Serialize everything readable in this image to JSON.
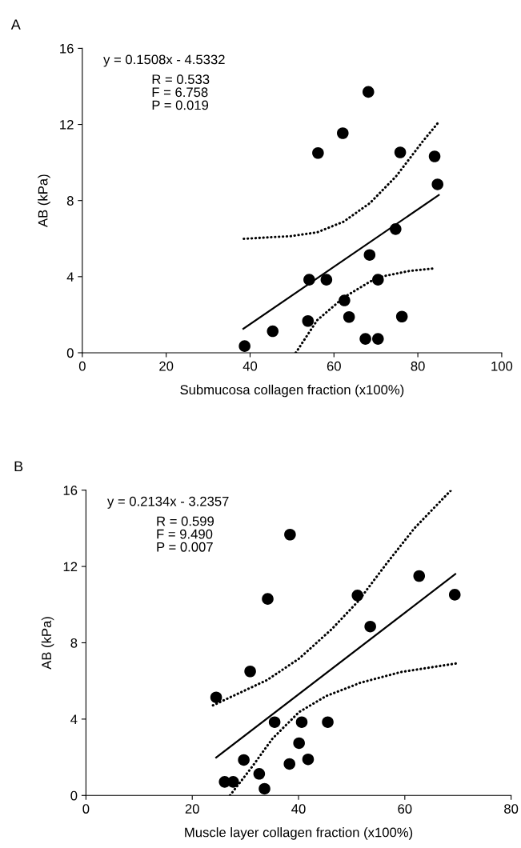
{
  "chart_data": [
    {
      "type": "scatter",
      "title": "A",
      "xlabel": "Submucosa collagen fraction (x100%)",
      "ylabel": "AB (kPa)",
      "xlim": [
        0,
        100
      ],
      "xticks": [
        0,
        20,
        40,
        60,
        80,
        100
      ],
      "ylim": [
        0,
        16
      ],
      "yticks": [
        0,
        4,
        8,
        12,
        16
      ],
      "grid": false,
      "legend": false,
      "annotations": [
        "y = 0.1508x - 4.5332",
        "R = 0.533",
        "F = 6.758",
        "P = 0.019"
      ],
      "series": [
        {
          "type": "scatter",
          "color": "#000000",
          "marker": "circle",
          "x": [
            38.7,
            45.4,
            53.8,
            54.1,
            56.2,
            58.2,
            62.1,
            62.5,
            63.6,
            67.5,
            68.2,
            68.5,
            70.5,
            70.5,
            74.7,
            75.8,
            76.2,
            84.0,
            84.7
          ],
          "values": [
            0.35,
            1.13,
            1.67,
            3.84,
            10.5,
            3.84,
            11.54,
            2.75,
            1.88,
            0.73,
            13.71,
            5.14,
            3.84,
            0.73,
            6.5,
            10.53,
            1.9,
            10.32,
            8.85
          ]
        },
        {
          "type": "line",
          "color": "#000000",
          "line_style": "solid",
          "x": [
            38.4,
            85.0
          ],
          "values": [
            1.26,
            8.29
          ]
        },
        {
          "type": "line",
          "color": "#000000",
          "line_style": "dotted",
          "x": [
            38.5,
            49.7,
            56.0,
            62.3,
            68.6,
            74.8,
            81.1,
            84.9
          ],
          "values": [
            5.99,
            6.13,
            6.33,
            6.89,
            7.87,
            9.27,
            11.09,
            12.11
          ]
        },
        {
          "type": "line",
          "color": "#000000",
          "line_style": "dotted",
          "x": [
            50.9,
            56.0,
            62.3,
            68.6,
            71.7,
            78.0,
            84.2
          ],
          "values": [
            0,
            1.71,
            2.9,
            3.74,
            4.02,
            4.3,
            4.44
          ]
        }
      ]
    },
    {
      "type": "scatter",
      "title": "B",
      "xlabel": "Muscle layer collagen fraction (x100%)",
      "ylabel": "AB (kPa)",
      "xlim": [
        0,
        80
      ],
      "xticks": [
        0,
        20,
        40,
        60,
        80
      ],
      "ylim": [
        0,
        16
      ],
      "yticks": [
        0,
        4,
        8,
        12,
        16
      ],
      "grid": false,
      "legend": false,
      "annotations": [
        "y = 0.2134x - 3.2357",
        "R = 0.599",
        "F = 9.490",
        "P = 0.007"
      ],
      "series": [
        {
          "type": "scatter",
          "color": "#000000",
          "marker": "circle",
          "x": [
            24.5,
            26.1,
            27.7,
            29.7,
            30.9,
            32.6,
            33.6,
            34.2,
            35.5,
            38.3,
            38.4,
            40.1,
            40.6,
            41.8,
            45.5,
            51.1,
            53.5,
            62.7,
            69.4
          ],
          "values": [
            5.14,
            0.71,
            0.71,
            1.86,
            6.5,
            1.13,
            0.35,
            10.3,
            3.84,
            1.65,
            13.67,
            2.74,
            3.84,
            1.89,
            3.84,
            10.48,
            8.85,
            11.5,
            10.52
          ]
        },
        {
          "type": "line",
          "color": "#000000",
          "line_style": "solid",
          "x": [
            24.5,
            69.5
          ],
          "values": [
            1.99,
            11.6
          ]
        },
        {
          "type": "line",
          "color": "#000000",
          "line_style": "dotted",
          "x": [
            23.9,
            34.1,
            40.1,
            46.2,
            51.2,
            56.7,
            61.8,
            68.6
          ],
          "values": [
            4.72,
            6.05,
            7.17,
            8.7,
            10.17,
            12.2,
            14.0,
            15.97
          ]
        },
        {
          "type": "line",
          "color": "#000000",
          "line_style": "dotted",
          "x": [
            27.1,
            31.1,
            35.1,
            40.1,
            45.2,
            51.7,
            59.3,
            69.7
          ],
          "values": [
            0,
            1.44,
            2.98,
            4.37,
            5.21,
            5.91,
            6.47,
            6.92
          ]
        }
      ]
    }
  ]
}
